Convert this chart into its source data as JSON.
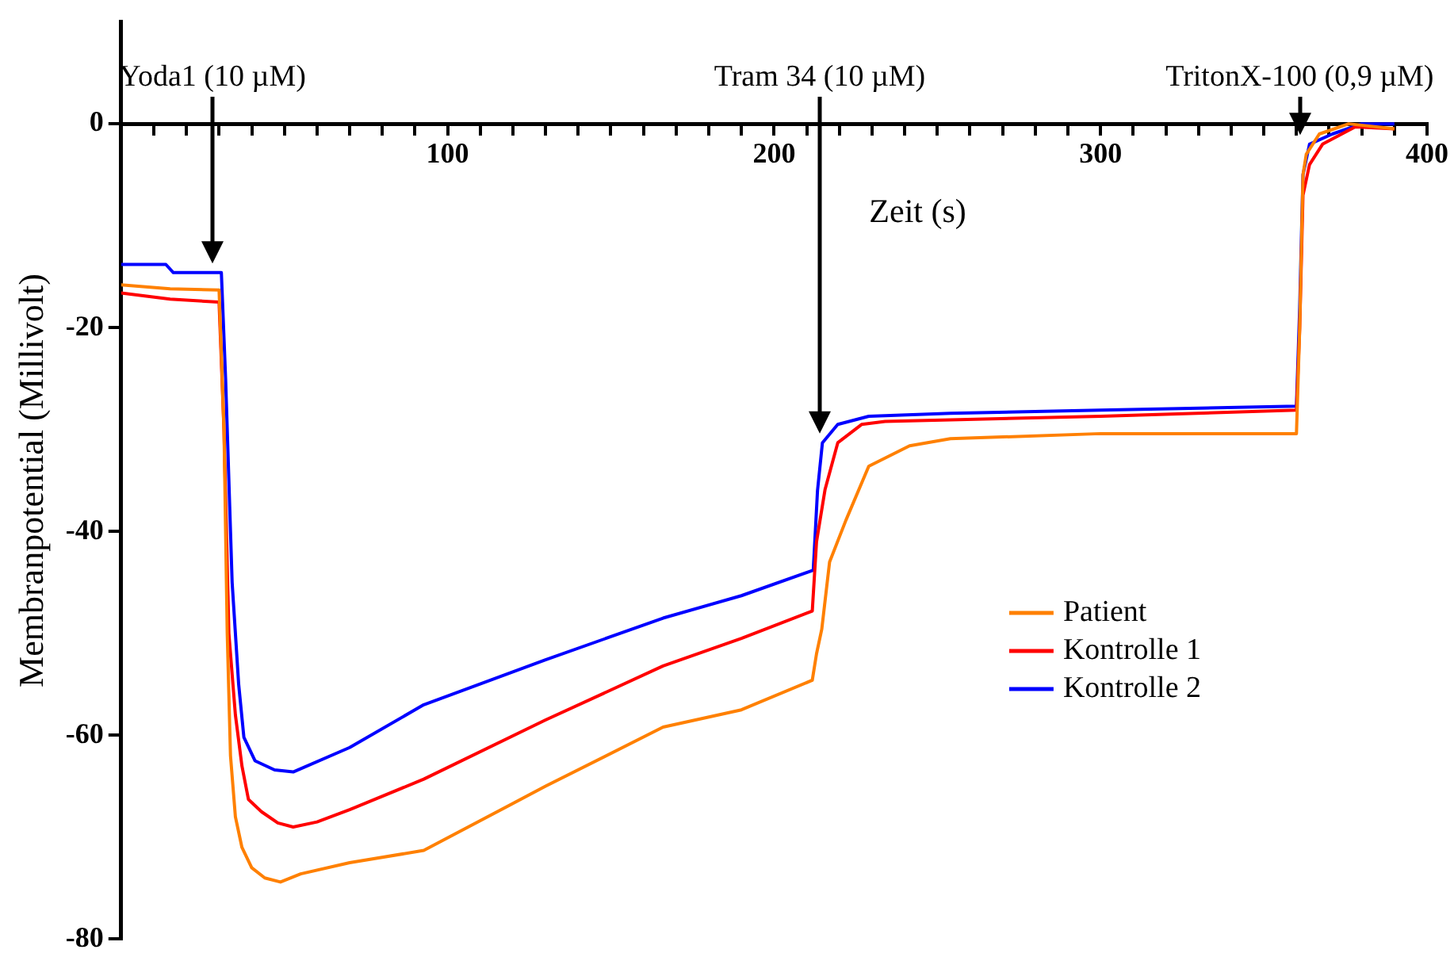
{
  "chart_data": {
    "type": "line",
    "xlabel": "Zeit (s)",
    "ylabel": "Membranpotential (Millivolt)",
    "xlim": [
      0,
      400
    ],
    "ylim": [
      -80,
      10
    ],
    "xticks": [
      {
        "value": 10,
        "label": null
      },
      {
        "value": 20,
        "label": null
      },
      {
        "value": 30,
        "label": null
      },
      {
        "value": 40,
        "label": null
      },
      {
        "value": 50,
        "label": null
      },
      {
        "value": 60,
        "label": null
      },
      {
        "value": 70,
        "label": null
      },
      {
        "value": 80,
        "label": null
      },
      {
        "value": 90,
        "label": null
      },
      100,
      {
        "value": 110,
        "label": null
      },
      {
        "value": 120,
        "label": null
      },
      {
        "value": 130,
        "label": null
      },
      {
        "value": 140,
        "label": null
      },
      {
        "value": 150,
        "label": null
      },
      {
        "value": 160,
        "label": null
      },
      {
        "value": 170,
        "label": null
      },
      {
        "value": 180,
        "label": null
      },
      {
        "value": 190,
        "label": null
      },
      200,
      {
        "value": 210,
        "label": null
      },
      {
        "value": 220,
        "label": null
      },
      {
        "value": 230,
        "label": null
      },
      {
        "value": 240,
        "label": null
      },
      {
        "value": 250,
        "label": null
      },
      {
        "value": 260,
        "label": null
      },
      {
        "value": 270,
        "label": null
      },
      {
        "value": 280,
        "label": null
      },
      {
        "value": 290,
        "label": null
      },
      300,
      {
        "value": 310,
        "label": null
      },
      {
        "value": 320,
        "label": null
      },
      {
        "value": 330,
        "label": null
      },
      {
        "value": 340,
        "label": null
      },
      {
        "value": 350,
        "label": null
      },
      {
        "value": 360,
        "label": null
      },
      {
        "value": 370,
        "label": null
      },
      {
        "value": 380,
        "label": null
      },
      {
        "value": 390,
        "label": null
      },
      400
    ],
    "yticks": [
      -80,
      -60,
      -40,
      -20,
      0
    ],
    "legend": "center right",
    "grid": false,
    "series": [
      {
        "name": "Patient",
        "color": "#ff8000",
        "x": [
          0,
          15,
          30,
          31.5,
          32.5,
          33.5,
          35,
          37,
          40,
          44,
          48.8,
          55,
          70,
          92.7,
          130,
          166,
          190,
          211.7,
          213,
          214.6,
          217,
          222,
          229,
          241.5,
          254,
          300,
          360,
          361,
          362,
          363,
          367,
          376,
          390
        ],
        "values": [
          -15.8,
          -16.2,
          -16.3,
          -30,
          -50,
          -62,
          -68,
          -71,
          -73,
          -74,
          -74.4,
          -73.6,
          -72.5,
          -71.3,
          -65,
          -59.2,
          -57.5,
          -54.6,
          -52,
          -49.6,
          -43,
          -38.9,
          -33.6,
          -31.6,
          -30.9,
          -30.4,
          -30.4,
          -20,
          -5,
          -3,
          -1,
          0,
          -0.5
        ]
      },
      {
        "name": "Kontrolle 1",
        "color": "#ff0000",
        "x": [
          0,
          15,
          30,
          31.5,
          33,
          35,
          37,
          39,
          43,
          48,
          52.7,
          60,
          70,
          92.7,
          130,
          166,
          190,
          211.7,
          213,
          215.6,
          219.5,
          226.8,
          234,
          300,
          360,
          361,
          362,
          364,
          368,
          378,
          390
        ],
        "values": [
          -16.6,
          -17.2,
          -17.5,
          -30,
          -50,
          -58,
          -63,
          -66.3,
          -67.5,
          -68.6,
          -69,
          -68.5,
          -67.3,
          -64.3,
          -58.5,
          -53.2,
          -50.5,
          -47.8,
          -41,
          -35.9,
          -31.3,
          -29.5,
          -29.2,
          -28.7,
          -28.1,
          -20,
          -7,
          -4,
          -2,
          -0.3,
          -0.5
        ]
      },
      {
        "name": "Kontrolle 2",
        "color": "#0000ff",
        "x": [
          0,
          13.7,
          16,
          30.7,
          32,
          34,
          36,
          37.6,
          41,
          47,
          52.7,
          70,
          92.7,
          130,
          166,
          190,
          212,
          213.3,
          214.8,
          219.5,
          229,
          254,
          300,
          360,
          361,
          362,
          364,
          371,
          380,
          390
        ],
        "values": [
          -13.8,
          -13.8,
          -14.6,
          -14.6,
          -25,
          -45,
          -55,
          -60.2,
          -62.5,
          -63.4,
          -63.6,
          -61.2,
          -57,
          -52.6,
          -48.5,
          -46.3,
          -43.8,
          -36,
          -31.3,
          -29.5,
          -28.7,
          -28.4,
          -28.1,
          -27.7,
          -18,
          -5,
          -2,
          -1,
          0,
          0
        ]
      }
    ],
    "ref_lines": [
      {
        "axis": "x",
        "value": 28,
        "label": "Yoda1 (10 µM)"
      },
      {
        "axis": "x",
        "value": 214,
        "label": "Tram 34 (10 µM)"
      },
      {
        "axis": "x",
        "value": 361,
        "label": "TritonX-100 (0,9 µM)"
      }
    ]
  }
}
